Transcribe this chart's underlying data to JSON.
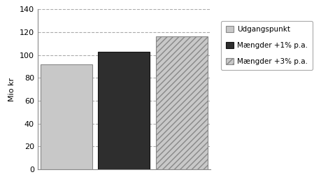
{
  "categories": [
    "Udgangspunkt",
    "Mængder +1% p.a.",
    "Mængder +3% p.a."
  ],
  "values": [
    92,
    103,
    116
  ],
  "bar_colors": [
    "#c8c8c8",
    "#2e2e2e",
    "#c8c8c8"
  ],
  "bar_hatches": [
    "",
    "",
    "////"
  ],
  "bar_edge_colors": [
    "#888888",
    "#111111",
    "#888888"
  ],
  "ylabel": "Mio kr",
  "ylim": [
    0,
    140
  ],
  "yticks": [
    0,
    20,
    40,
    60,
    80,
    100,
    120,
    140
  ],
  "grid_color": "#aaaaaa",
  "background_color": "#ffffff",
  "legend_labels": [
    "Udgangspunkt",
    "Mængder +1% p.a.",
    "Mængder +3% p.a."
  ],
  "legend_colors": [
    "#c8c8c8",
    "#2e2e2e",
    "#c8c8c8"
  ],
  "legend_hatches": [
    "",
    "",
    "////"
  ],
  "legend_edge_colors": [
    "#888888",
    "#111111",
    "#888888"
  ],
  "bar_width": 0.9,
  "figsize": [
    4.49,
    2.63
  ],
  "dpi": 100
}
